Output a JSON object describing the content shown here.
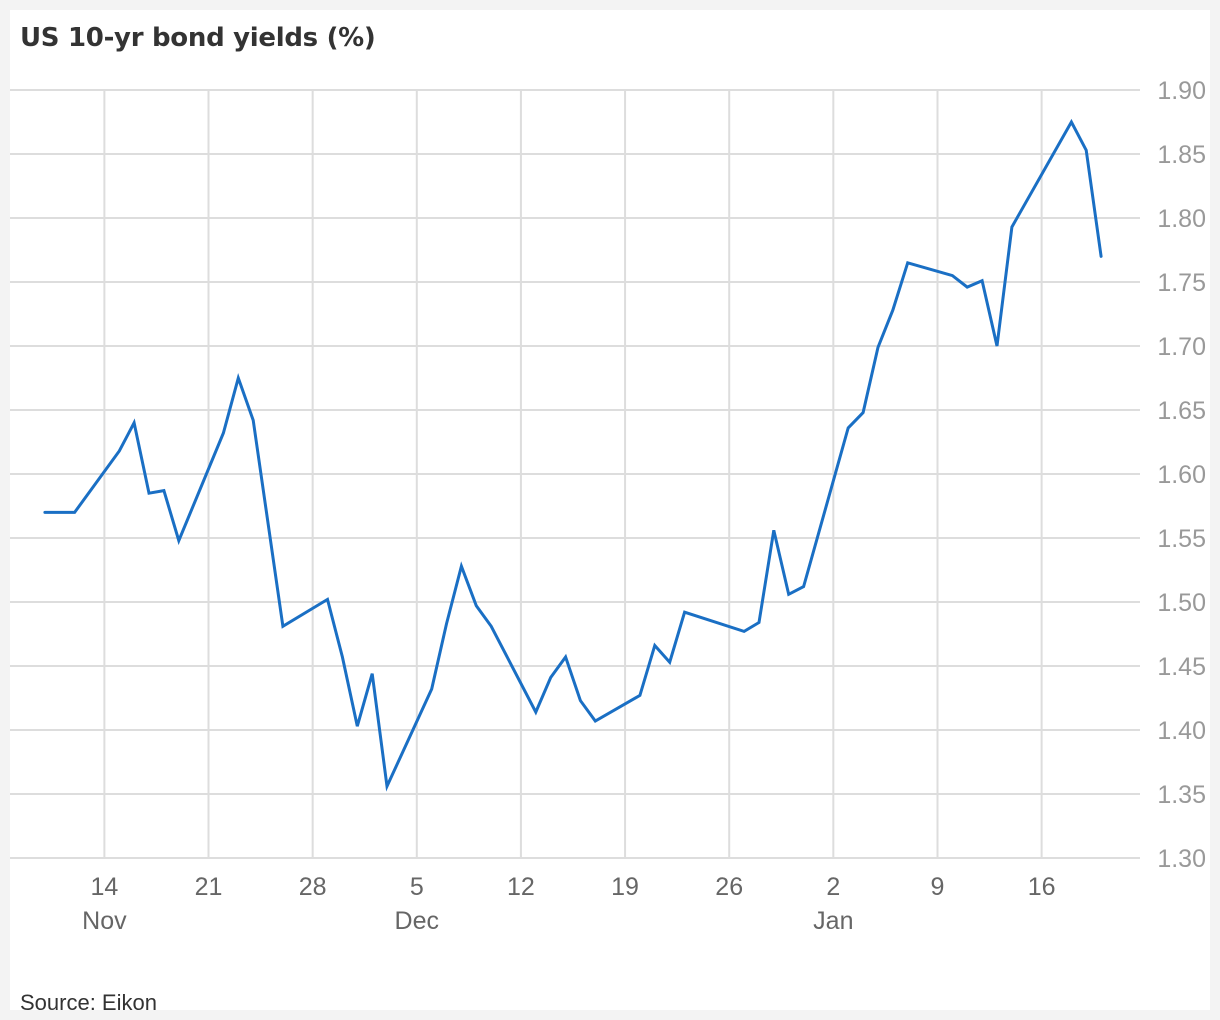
{
  "chart_data": {
    "type": "line",
    "title": "US 10-yr bond yields (%)",
    "source": "Source: Eikon",
    "ylim": [
      1.3,
      1.9
    ],
    "yticks": [
      "1.30",
      "1.35",
      "1.40",
      "1.45",
      "1.50",
      "1.55",
      "1.60",
      "1.65",
      "1.70",
      "1.75",
      "1.80",
      "1.85",
      "1.90"
    ],
    "xlim": [
      "2021-11-09",
      "2022-01-21"
    ],
    "xticks": [
      {
        "date": "2021-11-14",
        "day": "14",
        "month": "Nov"
      },
      {
        "date": "2021-11-21",
        "day": "21",
        "month": ""
      },
      {
        "date": "2021-11-28",
        "day": "28",
        "month": ""
      },
      {
        "date": "2021-12-05",
        "day": "5",
        "month": "Dec"
      },
      {
        "date": "2021-12-12",
        "day": "12",
        "month": ""
      },
      {
        "date": "2021-12-19",
        "day": "19",
        "month": ""
      },
      {
        "date": "2021-12-26",
        "day": "26",
        "month": ""
      },
      {
        "date": "2022-01-02",
        "day": "2",
        "month": "Jan"
      },
      {
        "date": "2022-01-09",
        "day": "9",
        "month": ""
      },
      {
        "date": "2022-01-16",
        "day": "16",
        "month": ""
      }
    ],
    "grid": true,
    "y_axis_position": "right",
    "colors": {
      "line": "#1a6fc4",
      "grid": "#dddddd",
      "tick_text": "#999999",
      "x_text": "#666666"
    },
    "series": [
      {
        "x": [
          "2021-11-10",
          "2021-11-12",
          "2021-11-15",
          "2021-11-16",
          "2021-11-17",
          "2021-11-18",
          "2021-11-19",
          "2021-11-22",
          "2021-11-23",
          "2021-11-24",
          "2021-11-26",
          "2021-11-29",
          "2021-11-30",
          "2021-12-01",
          "2021-12-02",
          "2021-12-03",
          "2021-12-06",
          "2021-12-07",
          "2021-12-08",
          "2021-12-09",
          "2021-12-10",
          "2021-12-13",
          "2021-12-14",
          "2021-12-15",
          "2021-12-16",
          "2021-12-17",
          "2021-12-20",
          "2021-12-21",
          "2021-12-22",
          "2021-12-23",
          "2021-12-27",
          "2021-12-28",
          "2021-12-29",
          "2021-12-30",
          "2021-12-31",
          "2022-01-03",
          "2022-01-04",
          "2022-01-05",
          "2022-01-06",
          "2022-01-07",
          "2022-01-10",
          "2022-01-11",
          "2022-01-12",
          "2022-01-13",
          "2022-01-14",
          "2022-01-18",
          "2022-01-19",
          "2022-01-20"
        ],
        "values": [
          1.57,
          1.57,
          1.618,
          1.64,
          1.585,
          1.587,
          1.548,
          1.632,
          1.675,
          1.642,
          1.481,
          1.502,
          1.457,
          1.403,
          1.444,
          1.356,
          1.432,
          1.483,
          1.528,
          1.497,
          1.481,
          1.414,
          1.441,
          1.457,
          1.423,
          1.407,
          1.427,
          1.466,
          1.453,
          1.492,
          1.477,
          1.484,
          1.556,
          1.506,
          1.512,
          1.636,
          1.648,
          1.699,
          1.728,
          1.765,
          1.755,
          1.746,
          1.751,
          1.7,
          1.793,
          1.875,
          1.853,
          1.77
        ]
      }
    ]
  }
}
